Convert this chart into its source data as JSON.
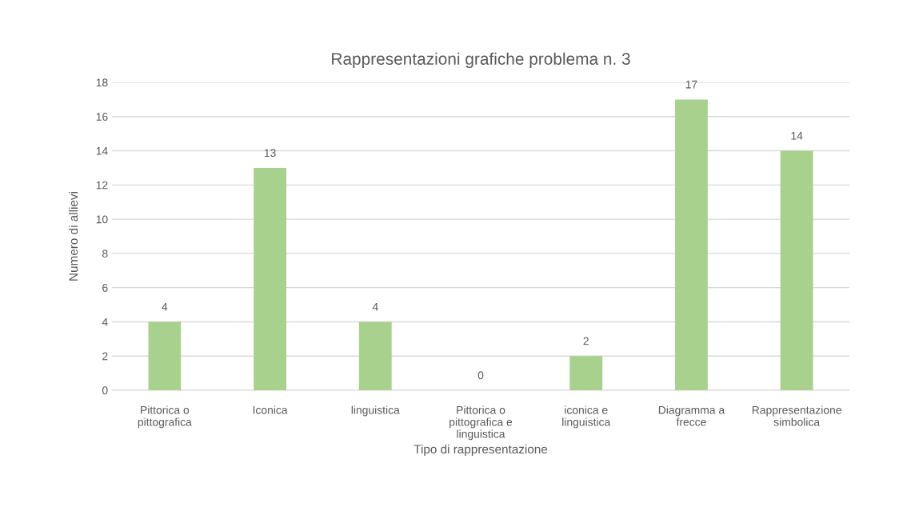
{
  "chart_data": {
    "type": "bar",
    "title": "Rappresentazioni grafiche problema n. 3",
    "xlabel": "Tipo di rappresentazione",
    "ylabel": "Numero di allievi",
    "categories": [
      "Pittorica o\npittografica",
      "Iconica",
      "linguistica",
      "Pittorica o\npittografica e\nlinguistica",
      "iconica e\nlinguistica",
      "Diagramma a\nfrecce",
      "Rappresentazione\nsimbolica"
    ],
    "values": [
      4,
      13,
      4,
      0,
      2,
      17,
      14
    ],
    "color": "#a9d18e",
    "ylim": [
      0,
      18
    ],
    "yticks": [
      0,
      2,
      4,
      6,
      8,
      10,
      12,
      14,
      16,
      18
    ],
    "grid": "y",
    "data_labels": true
  }
}
